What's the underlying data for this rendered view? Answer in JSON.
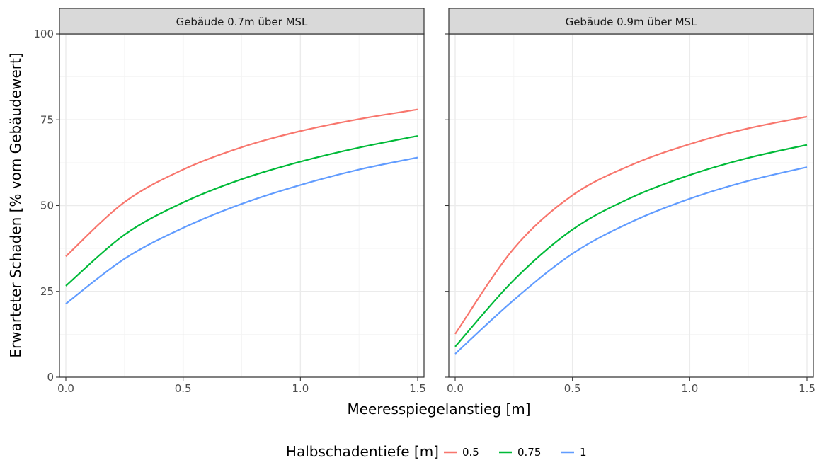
{
  "chart_data": {
    "type": "line",
    "xlabel": "Meeresspiegelanstieg [m]",
    "ylabel": "Erwarteter Schaden [% vom Gebäudewert]",
    "xlim": [
      0,
      1.5
    ],
    "ylim": [
      0,
      100
    ],
    "x_ticks": [
      0,
      0.5,
      1,
      1.5
    ],
    "x_tick_labels": [
      "0.0",
      "0.5",
      "1.0",
      "1.5"
    ],
    "y_ticks": [
      0,
      25,
      50,
      75,
      100
    ],
    "y_tick_labels": [
      "0",
      "25",
      "50",
      "75",
      "100"
    ],
    "grid": true,
    "legend": {
      "title": "Halbschadentiefe [m]",
      "position": "bottom",
      "entries": [
        "0.5",
        "0.75",
        "1"
      ]
    },
    "colors": {
      "0.5": "#F8766D",
      "0.75": "#00BA38",
      "1": "#619CFF"
    },
    "x": [
      0,
      0.25,
      0.5,
      0.75,
      1.0,
      1.25,
      1.5
    ],
    "panels": [
      {
        "title": "Gebäude 0.7m über MSL",
        "series": [
          {
            "name": "0.5",
            "values": [
              35.2,
              51.0,
              60.5,
              67.0,
              71.7,
              75.2,
              78.0
            ]
          },
          {
            "name": "0.75",
            "values": [
              26.6,
              41.5,
              50.9,
              57.7,
              62.8,
              66.9,
              70.3
            ]
          },
          {
            "name": "1",
            "values": [
              21.4,
              34.5,
              43.5,
              50.5,
              56.0,
              60.5,
              64.0
            ]
          }
        ]
      },
      {
        "title": "Gebäude 0.9m über MSL",
        "series": [
          {
            "name": "0.5",
            "values": [
              12.6,
              37.5,
              53.0,
              61.8,
              67.9,
              72.5,
              75.9
            ]
          },
          {
            "name": "0.75",
            "values": [
              8.9,
              28.3,
              43.0,
              52.3,
              58.9,
              63.9,
              67.7
            ]
          },
          {
            "name": "1",
            "values": [
              6.8,
              22.5,
              36.0,
              45.2,
              52.0,
              57.2,
              61.2
            ]
          }
        ]
      }
    ]
  }
}
